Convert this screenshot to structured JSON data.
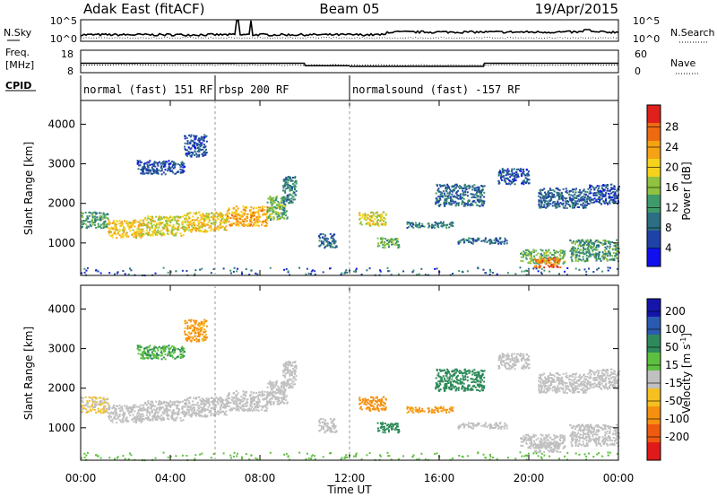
{
  "header": {
    "station": "Adak East (fitACF)",
    "beam": "Beam 05",
    "date": "19/Apr/2015"
  },
  "noise_panel": {
    "left_label": "N.Sky",
    "right_label": "N.Search",
    "ticks_left": [
      "10^5",
      "10^0"
    ],
    "ticks_right": [
      "10^5",
      "10^0"
    ]
  },
  "freq_panel": {
    "left_label_1": "Freq.",
    "left_label_2": "[MHz]",
    "right_label": "Nave",
    "ticks_left": [
      "18",
      "8"
    ],
    "ticks_right": [
      "60",
      "0"
    ],
    "freq_steps": [
      {
        "t0": 0.0,
        "t1": 10.0,
        "mhz": 12.2
      },
      {
        "t0": 10.0,
        "t1": 12.0,
        "mhz": 11.1
      },
      {
        "t0": 12.0,
        "t1": 18.0,
        "mhz": 10.8
      },
      {
        "t0": 18.0,
        "t1": 24.0,
        "mhz": 12.2
      }
    ]
  },
  "cpid": {
    "label": "CPID",
    "segments": [
      {
        "t0": 0.0,
        "t1": 6.0,
        "text": "normal (fast) 151 RF"
      },
      {
        "t0": 6.0,
        "t1": 12.0,
        "text": "rbsp 200 RF"
      },
      {
        "t0": 12.0,
        "t1": 24.0,
        "text": "normalsound (fast) -157 RF"
      }
    ]
  },
  "power_colorbar": {
    "title": "Power [dB]",
    "ticks": [
      "4",
      "8",
      "12",
      "16",
      "20",
      "24",
      "28"
    ],
    "colors": [
      "#1010ee",
      "#1f42a8",
      "#2c6e82",
      "#3f9a6a",
      "#8ec240",
      "#f5d21c",
      "#f5a214",
      "#ee6a12",
      "#e0201c"
    ]
  },
  "velocity_colorbar": {
    "title": "Velocity [m s",
    "title_sup": "-1",
    "title_end": "]",
    "ticks": [
      "200",
      "100",
      "50",
      "15",
      "-15",
      "-50",
      "-100",
      "-200"
    ],
    "colors": [
      "#1515aa",
      "#2b5bb0",
      "#2e8a5a",
      "#5ec040",
      "#c0c0c0",
      "#f5c020",
      "#f59010",
      "#ee5a10",
      "#e01a1a"
    ]
  },
  "chart_data": {
    "type": "heatmap",
    "xlabel": "Time UT",
    "x_tick_labels": [
      "00:00",
      "04:00",
      "08:00",
      "12:00",
      "16:00",
      "20:00",
      "00:00"
    ],
    "x_ticks_hours": [
      0,
      4,
      8,
      12,
      16,
      20,
      24
    ],
    "xlim_hours": [
      0,
      24
    ],
    "ylabel": "Slant Range [km]",
    "y_ticks": [
      1000,
      2000,
      3000,
      4000
    ],
    "ylim": [
      180,
      4600
    ],
    "panels": [
      "power",
      "velocity"
    ],
    "echo_regions": [
      {
        "t0": 0.0,
        "t1": 1.2,
        "r0": 1400,
        "r1": 1800,
        "power_db": 12,
        "vel": -15
      },
      {
        "t0": 1.2,
        "t1": 2.8,
        "r0": 1150,
        "r1": 1600,
        "power_db": 20,
        "vel": 0
      },
      {
        "t0": 2.8,
        "t1": 4.6,
        "r0": 1200,
        "r1": 1700,
        "power_db": 18,
        "vel": 0
      },
      {
        "t0": 4.6,
        "t1": 6.5,
        "r0": 1300,
        "r1": 1800,
        "power_db": 20,
        "vel": 0
      },
      {
        "t0": 6.5,
        "t1": 8.3,
        "r0": 1450,
        "r1": 1950,
        "power_db": 22,
        "vel": 0
      },
      {
        "t0": 8.3,
        "t1": 9.2,
        "r0": 1600,
        "r1": 2200,
        "power_db": 14,
        "vel": 0
      },
      {
        "t0": 9.0,
        "t1": 9.6,
        "r0": 2000,
        "r1": 2700,
        "power_db": 10,
        "vel": 0
      },
      {
        "t0": 2.5,
        "t1": 4.6,
        "r0": 2750,
        "r1": 3100,
        "power_db": 6,
        "vel": 30
      },
      {
        "t0": 4.6,
        "t1": 5.6,
        "r0": 3200,
        "r1": 3750,
        "power_db": 6,
        "vel": -40
      },
      {
        "t0": 10.6,
        "t1": 11.4,
        "r0": 900,
        "r1": 1250,
        "power_db": 8,
        "vel": 0
      },
      {
        "t0": 12.4,
        "t1": 13.6,
        "r0": 1450,
        "r1": 1800,
        "power_db": 18,
        "vel": -60
      },
      {
        "t0": 13.2,
        "t1": 14.2,
        "r0": 900,
        "r1": 1150,
        "power_db": 14,
        "vel": 60
      },
      {
        "t0": 14.5,
        "t1": 16.6,
        "r0": 1400,
        "r1": 1550,
        "power_db": 10,
        "vel": -40
      },
      {
        "t0": 15.8,
        "t1": 18.0,
        "r0": 1950,
        "r1": 2500,
        "power_db": 8,
        "vel": 60
      },
      {
        "t0": 16.8,
        "t1": 19.0,
        "r0": 1000,
        "r1": 1150,
        "power_db": 8,
        "vel": 0
      },
      {
        "t0": 18.6,
        "t1": 20.0,
        "r0": 2500,
        "r1": 2900,
        "power_db": 6,
        "vel": 0
      },
      {
        "t0": 20.4,
        "t1": 22.6,
        "r0": 1900,
        "r1": 2400,
        "power_db": 8,
        "vel": 0
      },
      {
        "t0": 19.6,
        "t1": 21.6,
        "r0": 500,
        "r1": 850,
        "power_db": 14,
        "vel": 0
      },
      {
        "t0": 20.2,
        "t1": 21.4,
        "r0": 400,
        "r1": 650,
        "power_db": 26,
        "vel": 0
      },
      {
        "t0": 21.8,
        "t1": 24.0,
        "r0": 550,
        "r1": 1100,
        "power_db": 12,
        "vel": 0
      },
      {
        "t0": 22.6,
        "t1": 24.0,
        "r0": 2000,
        "r1": 2500,
        "power_db": 6,
        "vel": 0
      }
    ]
  }
}
